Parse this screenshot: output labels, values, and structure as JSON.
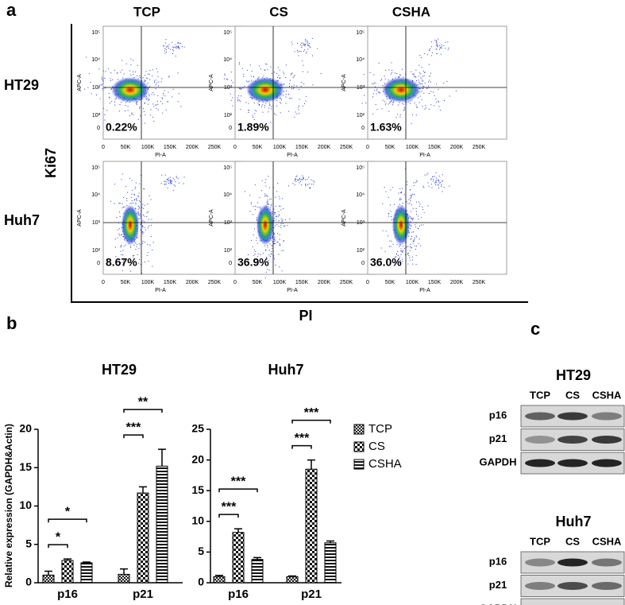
{
  "figure": {
    "panel_labels": [
      "a",
      "b",
      "c"
    ]
  },
  "flow": {
    "columns": [
      "TCP",
      "CS",
      "CSHA"
    ],
    "rows": [
      "HT29",
      "Huh7"
    ],
    "y_title": "Ki67",
    "x_title": "PI",
    "plot_x_label": "PI-A",
    "plot_y_label": "APC-A",
    "xticks": [
      "0",
      "50K",
      "100K",
      "150K",
      "200K",
      "250K"
    ],
    "yticks": [
      "10⁵",
      "10⁴",
      "10³",
      "10²",
      "0"
    ],
    "percentages": [
      [
        "0.22%",
        "1.89%",
        "1.63%"
      ],
      [
        "8.67%",
        "36.9%",
        "36.0%"
      ]
    ]
  },
  "blots": [
    {
      "title": "HT29",
      "lanes": [
        "TCP",
        "CS",
        "CSHA"
      ],
      "proteins": [
        "p16",
        "p21",
        "GAPDH"
      ]
    },
    {
      "title": "Huh7",
      "lanes": [
        "TCP",
        "CS",
        "CSHA"
      ],
      "proteins": [
        "p16",
        "p21",
        "GAPDH"
      ]
    }
  ],
  "chart_data": [
    {
      "type": "bar",
      "title": "HT29",
      "y_label": "Relative expression (GAPDH&Actin)",
      "categories": [
        "p16",
        "p21"
      ],
      "series": [
        {
          "name": "TCP",
          "pattern": "dense-checker",
          "values": [
            1.0,
            1.1
          ],
          "errors": [
            0.5,
            0.7
          ]
        },
        {
          "name": "CS",
          "pattern": "checker",
          "values": [
            2.9,
            11.7
          ],
          "errors": [
            0.2,
            0.8
          ]
        },
        {
          "name": "CSHA",
          "pattern": "stripes",
          "values": [
            2.6,
            15.2
          ],
          "errors": [
            0.1,
            2.2
          ]
        }
      ],
      "ylim": [
        0,
        20
      ],
      "yticks": [
        0,
        5,
        10,
        15,
        20
      ],
      "significance": [
        {
          "category": "p16",
          "pair": [
            "TCP",
            "CS"
          ],
          "label": "*"
        },
        {
          "category": "p16",
          "pair": [
            "TCP",
            "CSHA"
          ],
          "label": "*"
        },
        {
          "category": "p21",
          "pair": [
            "TCP",
            "CS"
          ],
          "label": "***"
        },
        {
          "category": "p21",
          "pair": [
            "TCP",
            "CSHA"
          ],
          "label": "**"
        }
      ]
    },
    {
      "type": "bar",
      "title": "Huh7",
      "categories": [
        "p16",
        "p21"
      ],
      "series": [
        {
          "name": "TCP",
          "pattern": "dense-checker",
          "values": [
            1.0,
            1.0
          ],
          "errors": [
            0.2,
            0.1
          ]
        },
        {
          "name": "CS",
          "pattern": "checker",
          "values": [
            8.2,
            18.5
          ],
          "errors": [
            0.6,
            1.5
          ]
        },
        {
          "name": "CSHA",
          "pattern": "stripes",
          "values": [
            3.8,
            6.5
          ],
          "errors": [
            0.3,
            0.3
          ]
        }
      ],
      "ylim": [
        0,
        25
      ],
      "yticks": [
        0,
        5,
        10,
        15,
        20,
        25
      ],
      "legend": "right",
      "significance": [
        {
          "category": "p16",
          "pair": [
            "TCP",
            "CS"
          ],
          "label": "***"
        },
        {
          "category": "p16",
          "pair": [
            "TCP",
            "CSHA"
          ],
          "label": "***"
        },
        {
          "category": "p21",
          "pair": [
            "TCP",
            "CS"
          ],
          "label": "***"
        },
        {
          "category": "p21",
          "pair": [
            "TCP",
            "CSHA"
          ],
          "label": "***"
        }
      ]
    }
  ]
}
